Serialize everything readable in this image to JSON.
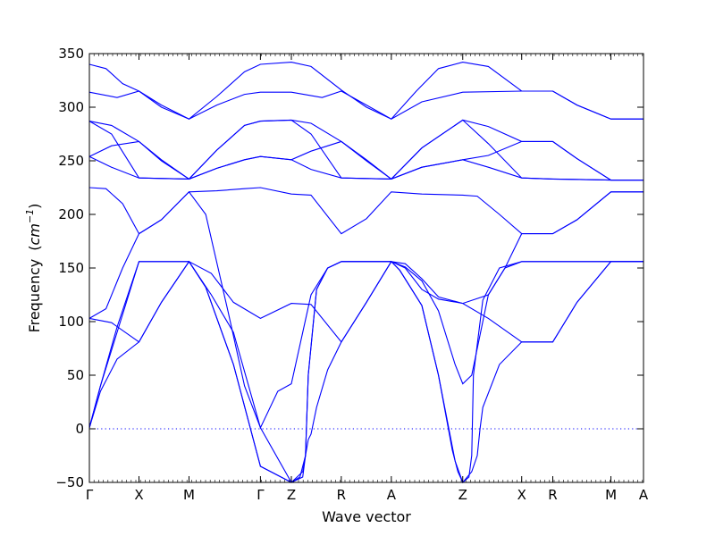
{
  "chart_data": {
    "type": "line",
    "title": "",
    "xlabel": "Wave vector",
    "ylabel": "Frequency",
    "ylabel_unit": "cm",
    "ylabel_unit_exp": "−1",
    "ylim": [
      -50,
      350
    ],
    "yticks": [
      -50,
      0,
      50,
      100,
      150,
      200,
      250,
      300,
      350
    ],
    "ytick_labels": [
      "−50",
      "0",
      "50",
      "100",
      "150",
      "200",
      "250",
      "300",
      "350"
    ],
    "xlim": [
      0,
      1
    ],
    "x_points": [
      0,
      0.0895,
      0.1798,
      0.3087,
      0.3645,
      0.4546,
      0.5449,
      0.6738,
      0.7802,
      0.8363,
      0.9412,
      1
    ],
    "x_labels": [
      "Γ",
      "X",
      "M",
      "Γ",
      "Z",
      "R",
      "A",
      "Z",
      "X",
      "R",
      "M",
      "A"
    ],
    "zero_line": true,
    "grid": false,
    "legend": "none",
    "color": "#0000ff",
    "bands": [
      [
        [
          0,
          340
        ],
        [
          0.03,
          336
        ],
        [
          0.06,
          322
        ],
        [
          0.0895,
          315
        ],
        [
          0.13,
          300
        ],
        [
          0.1798,
          289
        ],
        [
          0.23,
          310
        ],
        [
          0.28,
          333
        ],
        [
          0.3087,
          340
        ],
        [
          0.3645,
          342
        ],
        [
          0.4,
          338
        ],
        [
          0.4546,
          316
        ],
        [
          0.5,
          300
        ],
        [
          0.5449,
          289
        ],
        [
          0.59,
          315
        ],
        [
          0.63,
          336
        ],
        [
          0.6738,
          342
        ],
        [
          0.72,
          338
        ],
        [
          0.7802,
          315
        ],
        [
          0.8363,
          315
        ],
        [
          0.88,
          302
        ],
        [
          0.9412,
          289
        ],
        [
          1,
          289
        ]
      ],
      [
        [
          0,
          314
        ],
        [
          0.05,
          309
        ],
        [
          0.0895,
          315
        ],
        [
          0.13,
          302
        ],
        [
          0.1798,
          289
        ],
        [
          0.23,
          302
        ],
        [
          0.28,
          312
        ],
        [
          0.3087,
          314
        ],
        [
          0.3645,
          314
        ],
        [
          0.42,
          309
        ],
        [
          0.4546,
          315
        ],
        [
          0.5,
          302
        ],
        [
          0.5449,
          289
        ],
        [
          0.6,
          305
        ],
        [
          0.6738,
          314
        ],
        [
          0.7802,
          315
        ],
        [
          0.8363,
          315
        ],
        [
          0.88,
          302
        ],
        [
          0.9412,
          289
        ],
        [
          1,
          289
        ]
      ],
      [
        [
          0,
          287
        ],
        [
          0.04,
          283
        ],
        [
          0.0895,
          268
        ],
        [
          0.13,
          251
        ],
        [
          0.1798,
          233
        ],
        [
          0.23,
          260
        ],
        [
          0.28,
          283
        ],
        [
          0.3087,
          287
        ],
        [
          0.3645,
          288
        ],
        [
          0.4,
          285
        ],
        [
          0.4546,
          268
        ],
        [
          0.5,
          250
        ],
        [
          0.5449,
          233
        ],
        [
          0.6,
          262
        ],
        [
          0.6738,
          288
        ],
        [
          0.72,
          282
        ],
        [
          0.7802,
          268
        ],
        [
          0.8363,
          268
        ],
        [
          0.88,
          252
        ],
        [
          0.9412,
          232
        ],
        [
          1,
          232
        ]
      ],
      [
        [
          0,
          287
        ],
        [
          0.04,
          275
        ],
        [
          0.0895,
          234
        ],
        [
          0.1798,
          233
        ],
        [
          0.23,
          243
        ],
        [
          0.28,
          251
        ],
        [
          0.3087,
          254
        ],
        [
          0.3645,
          251
        ],
        [
          0.4,
          259
        ],
        [
          0.4546,
          268
        ],
        [
          0.5,
          251
        ],
        [
          0.5449,
          233
        ],
        [
          0.6,
          244
        ],
        [
          0.6738,
          251
        ],
        [
          0.72,
          255
        ],
        [
          0.7802,
          268
        ],
        [
          0.8363,
          268
        ],
        [
          0.88,
          252
        ],
        [
          0.9412,
          232
        ],
        [
          1,
          232
        ]
      ],
      [
        [
          0,
          254
        ],
        [
          0.04,
          264
        ],
        [
          0.0895,
          268
        ],
        [
          0.13,
          250
        ],
        [
          0.1798,
          233
        ],
        [
          0.23,
          260
        ],
        [
          0.28,
          283
        ],
        [
          0.3087,
          287
        ],
        [
          0.3645,
          288
        ],
        [
          0.4,
          275
        ],
        [
          0.4546,
          234
        ],
        [
          0.5449,
          233
        ],
        [
          0.6,
          262
        ],
        [
          0.6738,
          288
        ],
        [
          0.72,
          266
        ],
        [
          0.7802,
          234
        ],
        [
          0.8363,
          233
        ],
        [
          0.9412,
          232
        ],
        [
          1,
          232
        ]
      ],
      [
        [
          0,
          254
        ],
        [
          0.04,
          244
        ],
        [
          0.0895,
          234
        ],
        [
          0.1798,
          233
        ],
        [
          0.23,
          243
        ],
        [
          0.28,
          251
        ],
        [
          0.3087,
          254
        ],
        [
          0.3645,
          251
        ],
        [
          0.4,
          242
        ],
        [
          0.4546,
          234
        ],
        [
          0.5449,
          233
        ],
        [
          0.6,
          244
        ],
        [
          0.6738,
          251
        ],
        [
          0.72,
          244
        ],
        [
          0.7802,
          234
        ],
        [
          0.8363,
          233
        ],
        [
          0.9412,
          232
        ],
        [
          1,
          232
        ]
      ],
      [
        [
          0,
          225
        ],
        [
          0.03,
          224
        ],
        [
          0.06,
          210
        ],
        [
          0.0895,
          182
        ],
        [
          0.13,
          195
        ],
        [
          0.1798,
          221
        ],
        [
          0.23,
          222
        ],
        [
          0.28,
          224
        ],
        [
          0.3087,
          225
        ],
        [
          0.3645,
          219
        ],
        [
          0.4,
          218
        ],
        [
          0.4546,
          182
        ],
        [
          0.5,
          196
        ],
        [
          0.5449,
          221
        ],
        [
          0.6,
          219
        ],
        [
          0.6738,
          218
        ],
        [
          0.7,
          217
        ],
        [
          0.74,
          200
        ],
        [
          0.7802,
          182
        ],
        [
          0.8363,
          182
        ],
        [
          0.88,
          195
        ],
        [
          0.9412,
          221
        ],
        [
          1,
          221
        ]
      ],
      [
        [
          0,
          103
        ],
        [
          0.03,
          112
        ],
        [
          0.06,
          150
        ],
        [
          0.0895,
          182
        ],
        [
          0.13,
          195
        ],
        [
          0.1798,
          221
        ],
        [
          0.21,
          200
        ],
        [
          0.25,
          110
        ],
        [
          0.28,
          40
        ],
        [
          0.3087,
          1
        ],
        [
          0.3645,
          -50
        ],
        [
          0.38,
          -45
        ],
        [
          0.39,
          -25
        ],
        [
          0.395,
          50
        ],
        [
          0.41,
          130
        ],
        [
          0.43,
          150
        ],
        [
          0.4546,
          156
        ],
        [
          0.5449,
          156
        ],
        [
          0.57,
          154
        ],
        [
          0.6,
          140
        ],
        [
          0.63,
          123
        ],
        [
          0.6738,
          117
        ],
        [
          0.72,
          125
        ],
        [
          0.75,
          150
        ],
        [
          0.7802,
          182
        ],
        [
          0.8363,
          182
        ],
        [
          0.88,
          195
        ],
        [
          0.9412,
          221
        ],
        [
          1,
          221
        ]
      ],
      [
        [
          0,
          1
        ],
        [
          0.02,
          40
        ],
        [
          0.05,
          95
        ],
        [
          0.0895,
          156
        ],
        [
          0.1798,
          156
        ],
        [
          0.22,
          125
        ],
        [
          0.26,
          90
        ],
        [
          0.3087,
          1
        ],
        [
          0.34,
          35
        ],
        [
          0.3645,
          42
        ],
        [
          0.4,
          125
        ],
        [
          0.43,
          150
        ],
        [
          0.4546,
          156
        ],
        [
          0.5449,
          156
        ],
        [
          0.57,
          151
        ],
        [
          0.6,
          138
        ],
        [
          0.63,
          110
        ],
        [
          0.66,
          60
        ],
        [
          0.6738,
          42
        ],
        [
          0.69,
          50
        ],
        [
          0.72,
          125
        ],
        [
          0.75,
          150
        ],
        [
          0.7802,
          156
        ],
        [
          0.8363,
          156
        ],
        [
          0.9412,
          156
        ],
        [
          1,
          156
        ]
      ],
      [
        [
          0,
          1
        ],
        [
          0.02,
          40
        ],
        [
          0.05,
          90
        ],
        [
          0.0895,
          156
        ],
        [
          0.1798,
          156
        ],
        [
          0.21,
          132
        ],
        [
          0.26,
          60
        ],
        [
          0.3087,
          -35
        ],
        [
          0.3645,
          -50
        ],
        [
          0.385,
          -45
        ],
        [
          0.39,
          -25
        ],
        [
          0.395,
          50
        ],
        [
          0.41,
          130
        ],
        [
          0.43,
          150
        ],
        [
          0.4546,
          156
        ],
        [
          0.5449,
          156
        ],
        [
          0.56,
          148
        ],
        [
          0.6,
          115
        ],
        [
          0.63,
          50
        ],
        [
          0.66,
          -30
        ],
        [
          0.6738,
          -50
        ],
        [
          0.685,
          -45
        ],
        [
          0.69,
          -25
        ],
        [
          0.693,
          50
        ],
        [
          0.71,
          120
        ],
        [
          0.74,
          150
        ],
        [
          0.7802,
          156
        ],
        [
          0.8363,
          156
        ],
        [
          0.9412,
          156
        ],
        [
          1,
          156
        ]
      ],
      [
        [
          0,
          1
        ],
        [
          0.02,
          35
        ],
        [
          0.05,
          65
        ],
        [
          0.0895,
          81
        ],
        [
          0.13,
          118
        ],
        [
          0.1798,
          156
        ],
        [
          0.21,
          132
        ],
        [
          0.26,
          60
        ],
        [
          0.3087,
          -35
        ],
        [
          0.3645,
          -50
        ],
        [
          0.385,
          -40
        ],
        [
          0.395,
          -10
        ],
        [
          0.4,
          -5
        ],
        [
          0.41,
          20
        ],
        [
          0.43,
          55
        ],
        [
          0.4546,
          81
        ],
        [
          0.5,
          118
        ],
        [
          0.5449,
          156
        ],
        [
          0.56,
          148
        ],
        [
          0.6,
          115
        ],
        [
          0.63,
          50
        ],
        [
          0.655,
          -20
        ],
        [
          0.665,
          -40
        ],
        [
          0.6738,
          -50
        ],
        [
          0.69,
          -40
        ],
        [
          0.7,
          -25
        ],
        [
          0.705,
          0
        ],
        [
          0.71,
          20
        ],
        [
          0.74,
          60
        ],
        [
          0.7802,
          81
        ],
        [
          0.8363,
          81
        ],
        [
          0.88,
          118
        ],
        [
          0.9412,
          156
        ],
        [
          1,
          156
        ]
      ],
      [
        [
          0,
          103
        ],
        [
          0.04,
          99
        ],
        [
          0.0895,
          81
        ],
        [
          0.13,
          118
        ],
        [
          0.1798,
          156
        ],
        [
          0.22,
          145
        ],
        [
          0.26,
          118
        ],
        [
          0.3087,
          103
        ],
        [
          0.3645,
          117
        ],
        [
          0.4,
          116
        ],
        [
          0.4546,
          81
        ],
        [
          0.5,
          118
        ],
        [
          0.5449,
          156
        ],
        [
          0.57,
          150
        ],
        [
          0.6,
          130
        ],
        [
          0.63,
          121
        ],
        [
          0.6738,
          117
        ],
        [
          0.72,
          103
        ],
        [
          0.7802,
          81
        ],
        [
          0.8363,
          81
        ],
        [
          0.88,
          118
        ],
        [
          0.9412,
          156
        ],
        [
          1,
          156
        ]
      ]
    ]
  }
}
